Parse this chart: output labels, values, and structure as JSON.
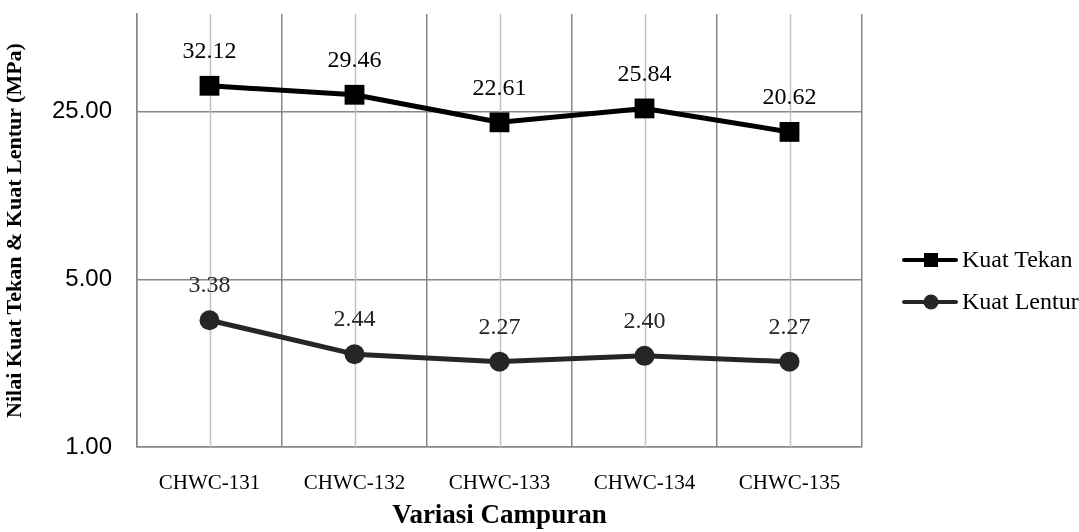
{
  "chart_data": {
    "type": "line",
    "xlabel": "Variasi Campuran",
    "ylabel": "Nilai Kuat Tekan & Kuat Lentur (MPa)",
    "categories": [
      "CHWC-131",
      "CHWC-132",
      "CHWC-133",
      "CHWC-134",
      "CHWC-135"
    ],
    "series": [
      {
        "name": "Kuat Tekan",
        "color": "#000000",
        "marker": "square",
        "values": [
          32.12,
          29.46,
          22.61,
          25.84,
          20.62
        ],
        "value_labels": [
          "32.12",
          "29.46",
          "22.61",
          "25.84",
          "20.62"
        ]
      },
      {
        "name": "Kuat Lentur",
        "color": "#262626",
        "marker": "circle",
        "values": [
          3.38,
          2.44,
          2.27,
          2.4,
          2.27
        ],
        "value_labels": [
          "3.38",
          "2.44",
          "2.27",
          "2.40",
          "2.27"
        ]
      }
    ],
    "log": "y",
    "ylim": [
      1,
      64
    ],
    "yticks": [
      {
        "value": 1,
        "label": "1.00"
      },
      {
        "value": 5,
        "label": "5.00"
      },
      {
        "value": 25,
        "label": "25.00"
      }
    ],
    "grid": true,
    "legend": "right",
    "line_style": "solid"
  }
}
